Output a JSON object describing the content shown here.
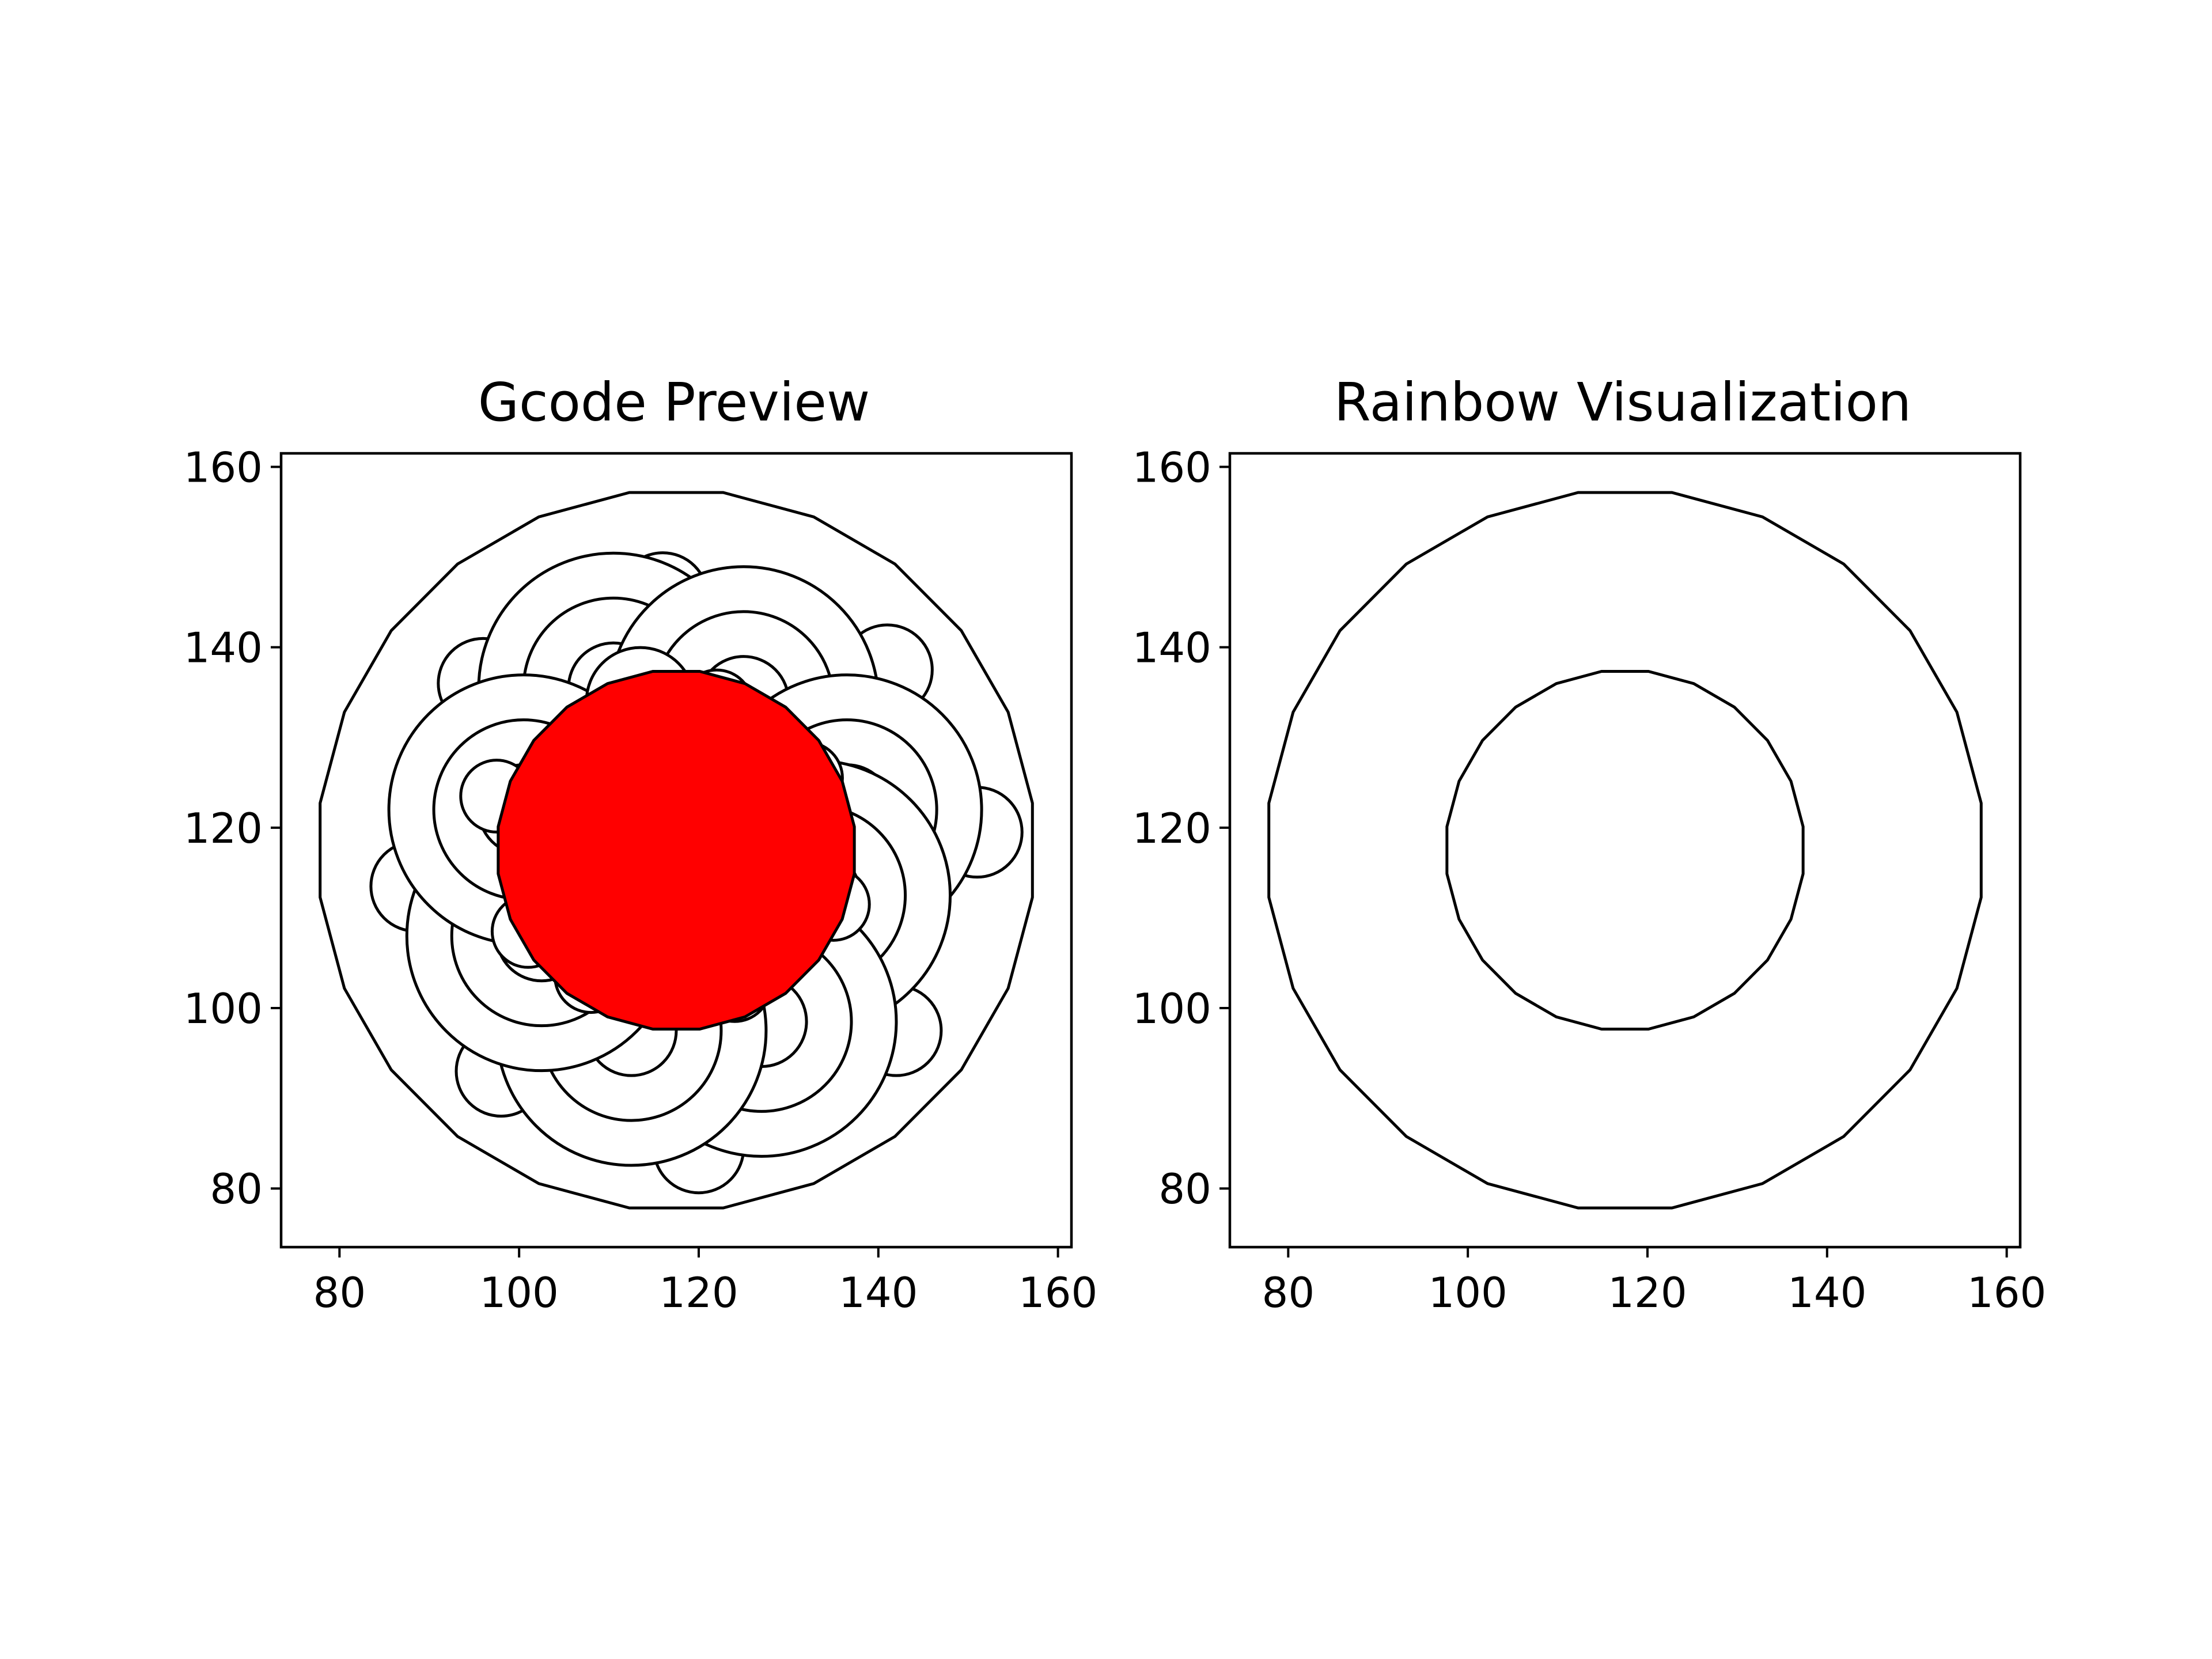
{
  "figure": {
    "background": "#ffffff",
    "line_color": "#000000"
  },
  "chart_data": [
    {
      "type": "line",
      "title": "Gcode Preview",
      "xlabel": "",
      "ylabel": "",
      "xlim": [
        73.5,
        161.5
      ],
      "ylim": [
        73.5,
        161.5
      ],
      "xticks": [
        80,
        100,
        120,
        140,
        160
      ],
      "yticks": [
        80,
        100,
        120,
        140,
        160
      ],
      "grid": false,
      "aspect": "equal",
      "outer_boundary": {
        "center": [
          117.5,
          117.5
        ],
        "radius": 40.0,
        "sides": 24
      },
      "filled_circle": {
        "center": [
          117.5,
          117.5
        ],
        "radius": 20.0,
        "color": "#ff0000",
        "sides": 24
      },
      "rosette": [
        {
          "center": [
            117.5,
            117.5
          ],
          "radius": 20.0,
          "start": 0.0,
          "end": 1.0,
          "outward": false
        },
        {
          "center": [
            117.5,
            117.5
          ],
          "radius": 20.0,
          "start": 2.5,
          "end": 8.3,
          "outward": true
        },
        {
          "center": [
            117.5,
            117.5
          ],
          "radius": 20.0,
          "start": 8.3,
          "end": 11.4,
          "outward": true
        },
        {
          "center": [
            117.5,
            117.5
          ],
          "radius": 20.0,
          "start": 11.4,
          "end": 17.0,
          "outward": true
        },
        {
          "center": [
            117.5,
            117.5
          ],
          "radius": 20.0,
          "start": 17.0,
          "end": 19.6,
          "outward": true
        },
        {
          "center": [
            117.5,
            117.5
          ],
          "radius": 20.0,
          "start": 19.6,
          "end": 25.6,
          "outward": true
        },
        {
          "center": [
            117.5,
            117.5
          ],
          "radius": 20.0,
          "start": 25.6,
          "end": 28.2,
          "outward": true
        },
        {
          "center": [
            117.5,
            117.5
          ],
          "radius": 20.0,
          "start": 28.2,
          "end": 34.0,
          "outward": true
        },
        {
          "center": [
            117.5,
            117.5
          ],
          "radius": 20.0,
          "start": 34.0,
          "end": 36.8,
          "outward": true
        }
      ],
      "small_lobes": [
        {
          "center": [
            113.5,
            134.0
          ],
          "radius": 6
        },
        {
          "center": [
            122.0,
            133.5
          ],
          "radius": 4
        },
        {
          "center": [
            132.0,
            125.5
          ],
          "radius": 4
        },
        {
          "center": [
            135.0,
            111.5
          ],
          "radius": 4
        },
        {
          "center": [
            124.0,
            102.5
          ],
          "radius": 4
        },
        {
          "center": [
            108.0,
            103.5
          ],
          "radius": 4
        },
        {
          "center": [
            101.0,
            108.5
          ],
          "radius": 4
        },
        {
          "center": [
            97.5,
            123.5
          ],
          "radius": 4
        }
      ],
      "rings": [
        {
          "center": [
            110.5,
            135.5
          ],
          "radii": [
            5,
            10,
            15
          ]
        },
        {
          "center": [
            125.0,
            134.0
          ],
          "radii": [
            5,
            10,
            15
          ]
        },
        {
          "center": [
            136.5,
            122.0
          ],
          "radii": [
            5,
            10,
            15
          ]
        },
        {
          "center": [
            133.0,
            112.5
          ],
          "radii": [
            5,
            10,
            15
          ]
        },
        {
          "center": [
            127.0,
            98.5
          ],
          "radii": [
            5,
            10,
            15
          ]
        },
        {
          "center": [
            112.5,
            97.5
          ],
          "radii": [
            5,
            10,
            15
          ]
        },
        {
          "center": [
            102.5,
            108.0
          ],
          "radii": [
            5,
            10,
            15
          ]
        },
        {
          "center": [
            100.5,
            122.0
          ],
          "radii": [
            5,
            10,
            15
          ]
        }
      ],
      "outer_lobes": [
        {
          "center": [
            116.0,
            145.5
          ],
          "radius": 5
        },
        {
          "center": [
            141.0,
            137.5
          ],
          "radius": 5
        },
        {
          "center": [
            151.0,
            119.5
          ],
          "radius": 5
        },
        {
          "center": [
            142.0,
            97.5
          ],
          "radius": 5
        },
        {
          "center": [
            120.0,
            84.5
          ],
          "radius": 5
        },
        {
          "center": [
            98.0,
            93.0
          ],
          "radius": 5
        },
        {
          "center": [
            88.5,
            113.5
          ],
          "radius": 5
        },
        {
          "center": [
            96.0,
            136.0
          ],
          "radius": 5
        }
      ]
    },
    {
      "type": "line",
      "title": "Rainbow Visualization",
      "xlabel": "",
      "ylabel": "",
      "xlim": [
        73.5,
        161.5
      ],
      "ylim": [
        73.5,
        161.5
      ],
      "xticks": [
        80,
        100,
        120,
        140,
        160
      ],
      "yticks": [
        80,
        100,
        120,
        140,
        160
      ],
      "grid": false,
      "aspect": "equal",
      "polygons": [
        {
          "center": [
            117.5,
            117.5
          ],
          "radius": 40.0,
          "sides": 24
        },
        {
          "center": [
            117.5,
            117.5
          ],
          "radius": 20.0,
          "sides": 24
        }
      ]
    }
  ]
}
